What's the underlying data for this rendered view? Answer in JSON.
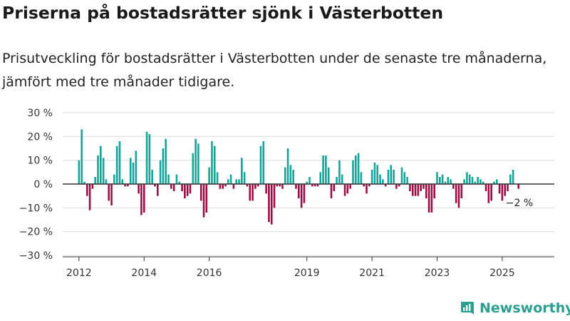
{
  "header": {
    "title": "Priserna på bostadsrätter sjönk i Västerbotten",
    "subtitle": "Prisutveckling för bostadsrätter i Västerbotten under de senaste tre månaderna, jämfört med tre månader tidigare."
  },
  "colors": {
    "positive": "#16a39a",
    "negative": "#9b0d45",
    "grid": "#dddddd",
    "axis": "#333333"
  },
  "brand": {
    "name": "Newsworthy",
    "icon": "bar-chart-logo-icon",
    "color": "#2a9e8f"
  },
  "chart_data": {
    "type": "bar",
    "title": "Priserna på bostadsrätter sjönk i Västerbotten",
    "xlabel": "",
    "ylabel": "",
    "ylim": [
      -30,
      30
    ],
    "y_ticks": [
      30,
      20,
      10,
      0,
      -10,
      -20,
      -30
    ],
    "y_tick_labels": [
      "30 %",
      "20 %",
      "10 %",
      "0 %",
      "−10 %",
      "−20 %",
      "−30 %"
    ],
    "x_ticks": [
      2012,
      2014,
      2016,
      2019,
      2021,
      2023,
      2025
    ],
    "x_tick_labels": [
      "2012",
      "2014",
      "2016",
      "2019",
      "2021",
      "2023",
      "2025"
    ],
    "x_start": 2012.0,
    "x_step": 0.0833333,
    "x_range": [
      2011.5,
      2026.6
    ],
    "grid": true,
    "last_label": "−2 %",
    "values": [
      10,
      23,
      1,
      -5,
      -11,
      -2,
      3,
      12,
      16,
      11,
      2,
      -7,
      -9,
      4,
      16,
      18,
      2,
      -1,
      -1,
      11,
      9,
      14,
      -4,
      -13,
      -12,
      22,
      21,
      6,
      -1,
      -5,
      10,
      15,
      19,
      4,
      -2,
      -3,
      4,
      1,
      -3,
      -6,
      -5,
      -4,
      13,
      19,
      17,
      -7,
      -14,
      -12,
      7,
      18,
      16,
      5,
      -2,
      -2,
      -1,
      2,
      4,
      -2,
      2,
      2,
      11,
      5,
      -1,
      -7,
      -7,
      -2,
      -1,
      16,
      18,
      -4,
      -16,
      -17,
      -10,
      -1,
      -1,
      -2,
      7,
      15,
      8,
      6,
      -2,
      -6,
      -10,
      -8,
      1,
      3,
      -1,
      -1,
      -1,
      5,
      12,
      12,
      7,
      -6,
      -3,
      3,
      10,
      4,
      -5,
      -4,
      -2,
      10,
      12,
      13,
      5,
      -1,
      -4,
      -1,
      6,
      9,
      8,
      4,
      2,
      -1,
      6,
      8,
      6,
      -2,
      -1,
      7,
      5,
      3,
      -3,
      -5,
      -5,
      -5,
      -3,
      -2,
      -6,
      -12,
      -12,
      -6,
      5,
      3,
      4,
      1,
      3,
      2,
      -2,
      -8,
      -10,
      -6,
      2,
      5,
      4,
      3,
      1,
      3,
      2,
      1,
      -3,
      -8,
      -7,
      1,
      2,
      -4,
      -7,
      -5,
      -3,
      4,
      6,
      0,
      -2
    ]
  }
}
